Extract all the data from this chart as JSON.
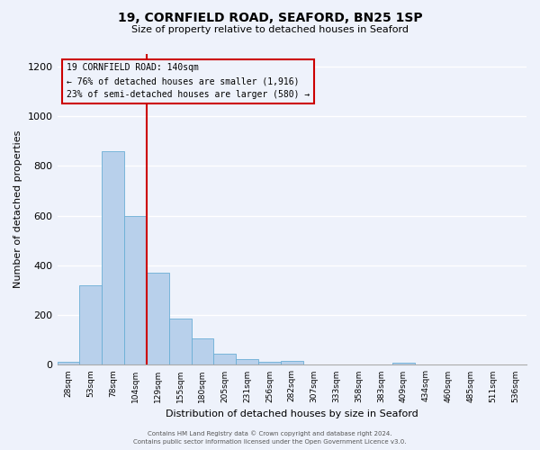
{
  "title_line1": "19, CORNFIELD ROAD, SEAFORD, BN25 1SP",
  "title_line2": "Size of property relative to detached houses in Seaford",
  "xlabel": "Distribution of detached houses by size in Seaford",
  "ylabel": "Number of detached properties",
  "bin_labels": [
    "28sqm",
    "53sqm",
    "78sqm",
    "104sqm",
    "129sqm",
    "155sqm",
    "180sqm",
    "205sqm",
    "231sqm",
    "256sqm",
    "282sqm",
    "307sqm",
    "333sqm",
    "358sqm",
    "383sqm",
    "409sqm",
    "434sqm",
    "460sqm",
    "485sqm",
    "511sqm",
    "536sqm"
  ],
  "bar_values": [
    12,
    320,
    860,
    600,
    370,
    185,
    105,
    45,
    22,
    14,
    17,
    3,
    0,
    0,
    0,
    8,
    0,
    0,
    0,
    0,
    0
  ],
  "bar_color": "#b8d0eb",
  "bar_edge_color": "#6aaed6",
  "background_color": "#eef2fb",
  "grid_color": "#ffffff",
  "ylim": [
    0,
    1250
  ],
  "yticks": [
    0,
    200,
    400,
    600,
    800,
    1000,
    1200
  ],
  "vline_x_bin": 4,
  "vline_color": "#cc0000",
  "annotation_box_color": "#cc0000",
  "annotation_line1": "19 CORNFIELD ROAD: 140sqm",
  "annotation_line2": "← 76% of detached houses are smaller (1,916)",
  "annotation_line3": "23% of semi-detached houses are larger (580) →",
  "footer_line1": "Contains HM Land Registry data © Crown copyright and database right 2024.",
  "footer_line2": "Contains public sector information licensed under the Open Government Licence v3.0."
}
